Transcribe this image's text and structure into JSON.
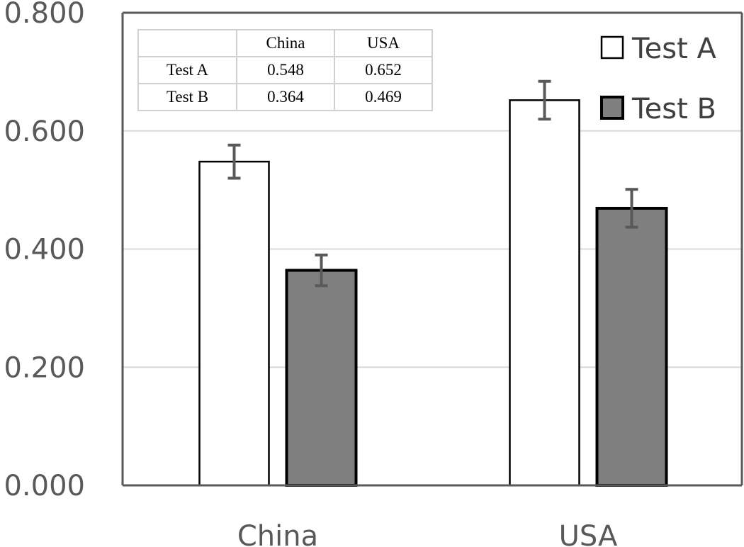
{
  "chart_data": {
    "type": "bar",
    "categories": [
      "China",
      "USA"
    ],
    "series": [
      {
        "name": "Test A",
        "values": [
          0.548,
          0.652
        ],
        "errors": [
          0.028,
          0.032
        ],
        "color": "#ffffff"
      },
      {
        "name": "Test B",
        "values": [
          0.364,
          0.469
        ],
        "errors": [
          0.026,
          0.032
        ],
        "color": "#7f7f7f"
      }
    ],
    "ylim": [
      0,
      0.8
    ],
    "yticks": [
      "0.000",
      "0.200",
      "0.400",
      "0.600",
      "0.800"
    ],
    "ytick_values": [
      0,
      0.2,
      0.4,
      0.6,
      0.8
    ],
    "grid": true,
    "legend_position": "top-right",
    "title": "",
    "xlabel": "",
    "ylabel": ""
  },
  "inset_table": {
    "header": [
      "",
      "China",
      "USA"
    ],
    "rows": [
      [
        "Test A",
        "0.548",
        "0.652"
      ],
      [
        "Test B",
        "0.364",
        "0.469"
      ]
    ]
  },
  "colors": {
    "axis": "#595959",
    "gridline": "#d9d9d9",
    "bar_outline": "#000000",
    "error_bar": "#595959"
  }
}
